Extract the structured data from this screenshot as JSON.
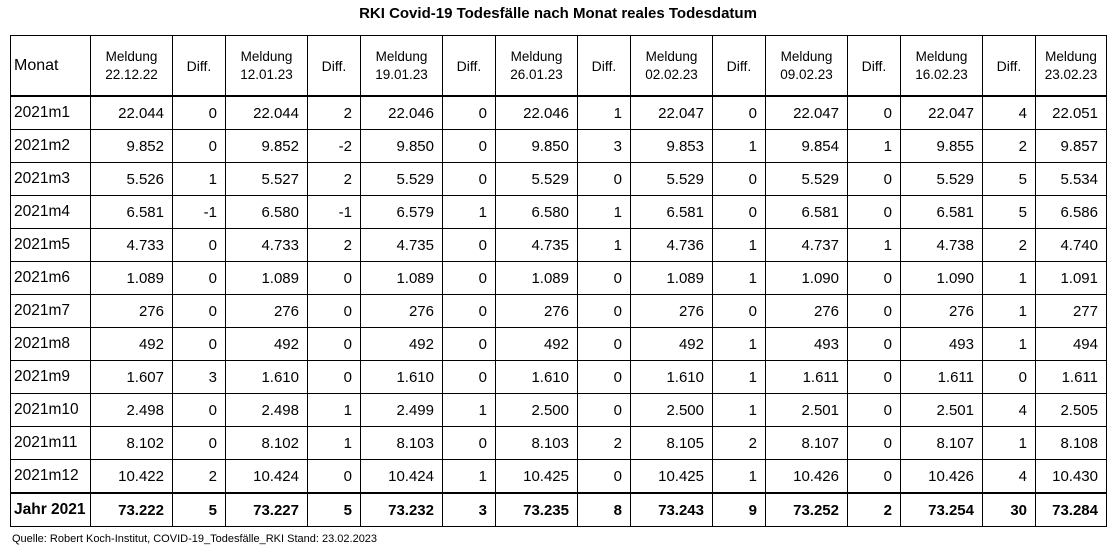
{
  "title": "RKI Covid-19 Todesfälle nach Monat reales Todesdatum",
  "header": {
    "month": "Monat",
    "diff": "Diff.",
    "meldung_label": "Meldung",
    "dates": [
      "22.12.22",
      "12.01.23",
      "19.01.23",
      "26.01.23",
      "02.02.23",
      "09.02.23",
      "16.02.23",
      "23.02.23"
    ]
  },
  "rows": [
    {
      "month": "2021m1",
      "cells": [
        "22.044",
        "0",
        "22.044",
        "2",
        "22.046",
        "0",
        "22.046",
        "1",
        "22.047",
        "0",
        "22.047",
        "0",
        "22.047",
        "4",
        "22.051"
      ]
    },
    {
      "month": "2021m2",
      "cells": [
        "9.852",
        "0",
        "9.852",
        "-2",
        "9.850",
        "0",
        "9.850",
        "3",
        "9.853",
        "1",
        "9.854",
        "1",
        "9.855",
        "2",
        "9.857"
      ]
    },
    {
      "month": "2021m3",
      "cells": [
        "5.526",
        "1",
        "5.527",
        "2",
        "5.529",
        "0",
        "5.529",
        "0",
        "5.529",
        "0",
        "5.529",
        "0",
        "5.529",
        "5",
        "5.534"
      ]
    },
    {
      "month": "2021m4",
      "cells": [
        "6.581",
        "-1",
        "6.580",
        "-1",
        "6.579",
        "1",
        "6.580",
        "1",
        "6.581",
        "0",
        "6.581",
        "0",
        "6.581",
        "5",
        "6.586"
      ]
    },
    {
      "month": "2021m5",
      "cells": [
        "4.733",
        "0",
        "4.733",
        "2",
        "4.735",
        "0",
        "4.735",
        "1",
        "4.736",
        "1",
        "4.737",
        "1",
        "4.738",
        "2",
        "4.740"
      ]
    },
    {
      "month": "2021m6",
      "cells": [
        "1.089",
        "0",
        "1.089",
        "0",
        "1.089",
        "0",
        "1.089",
        "0",
        "1.089",
        "1",
        "1.090",
        "0",
        "1.090",
        "1",
        "1.091"
      ]
    },
    {
      "month": "2021m7",
      "cells": [
        "276",
        "0",
        "276",
        "0",
        "276",
        "0",
        "276",
        "0",
        "276",
        "0",
        "276",
        "0",
        "276",
        "1",
        "277"
      ]
    },
    {
      "month": "2021m8",
      "cells": [
        "492",
        "0",
        "492",
        "0",
        "492",
        "0",
        "492",
        "0",
        "492",
        "1",
        "493",
        "0",
        "493",
        "1",
        "494"
      ]
    },
    {
      "month": "2021m9",
      "cells": [
        "1.607",
        "3",
        "1.610",
        "0",
        "1.610",
        "0",
        "1.610",
        "0",
        "1.610",
        "1",
        "1.611",
        "0",
        "1.611",
        "0",
        "1.611"
      ]
    },
    {
      "month": "2021m10",
      "cells": [
        "2.498",
        "0",
        "2.498",
        "1",
        "2.499",
        "1",
        "2.500",
        "0",
        "2.500",
        "1",
        "2.501",
        "0",
        "2.501",
        "4",
        "2.505"
      ]
    },
    {
      "month": "2021m11",
      "cells": [
        "8.102",
        "0",
        "8.102",
        "1",
        "8.103",
        "0",
        "8.103",
        "2",
        "8.105",
        "2",
        "8.107",
        "0",
        "8.107",
        "1",
        "8.108"
      ]
    },
    {
      "month": "2021m12",
      "cells": [
        "10.422",
        "2",
        "10.424",
        "0",
        "10.424",
        "1",
        "10.425",
        "0",
        "10.425",
        "1",
        "10.426",
        "0",
        "10.426",
        "4",
        "10.430"
      ]
    }
  ],
  "total": {
    "month": "Jahr 2021",
    "cells": [
      "73.222",
      "5",
      "73.227",
      "5",
      "73.232",
      "3",
      "73.235",
      "8",
      "73.243",
      "9",
      "73.252",
      "2",
      "73.254",
      "30",
      "73.284"
    ]
  },
  "source": "Quelle: Robert Koch-Institut, COVID-19_Todesfälle_RKI Stand: 23.02.2023"
}
